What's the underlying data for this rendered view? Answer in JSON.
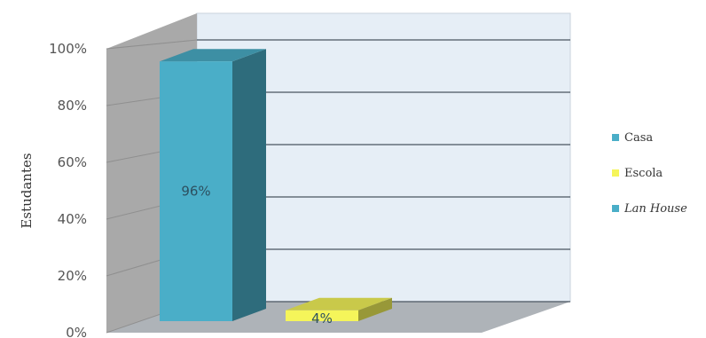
{
  "chart_data": {
    "type": "bar",
    "ylabel": "Estudantes",
    "ylim": [
      0,
      100
    ],
    "yticks": [
      "0%",
      "20%",
      "40%",
      "60%",
      "80%",
      "100%"
    ],
    "grid": true,
    "legend_position": "right",
    "series": [
      {
        "name": "Casa",
        "value": 96,
        "label": "96%",
        "color": "#4aaec8"
      },
      {
        "name": "Escola",
        "value": 4,
        "label": "4%",
        "color": "#f5f55a"
      },
      {
        "name": "Lan House",
        "value": 0,
        "label": "",
        "color": "#4aaec8"
      }
    ]
  }
}
